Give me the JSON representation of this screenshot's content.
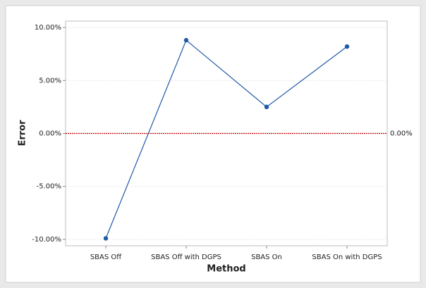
{
  "chart_data": {
    "type": "line",
    "x_label": "Method",
    "y_label": "Error",
    "categories": [
      "SBAS Off",
      "SBAS Off with DGPS",
      "SBAS On",
      "SBAS On with DGPS"
    ],
    "series": [
      {
        "color": "#1f5aa6",
        "values": [
          -9.9,
          8.8,
          2.5,
          8.2
        ]
      }
    ],
    "ylim": [
      -10.6,
      10.6
    ],
    "yticks": [
      {
        "value": -10,
        "label": "-10.00%"
      },
      {
        "value": -5,
        "label": "-5.00%"
      },
      {
        "value": 0,
        "label": "0.00%"
      },
      {
        "value": 5,
        "label": "5.00%"
      },
      {
        "value": 10,
        "label": "10.00%"
      }
    ],
    "grid": true,
    "reference_line": {
      "value": 0,
      "label": "0.00%",
      "color": "#c00000"
    }
  }
}
